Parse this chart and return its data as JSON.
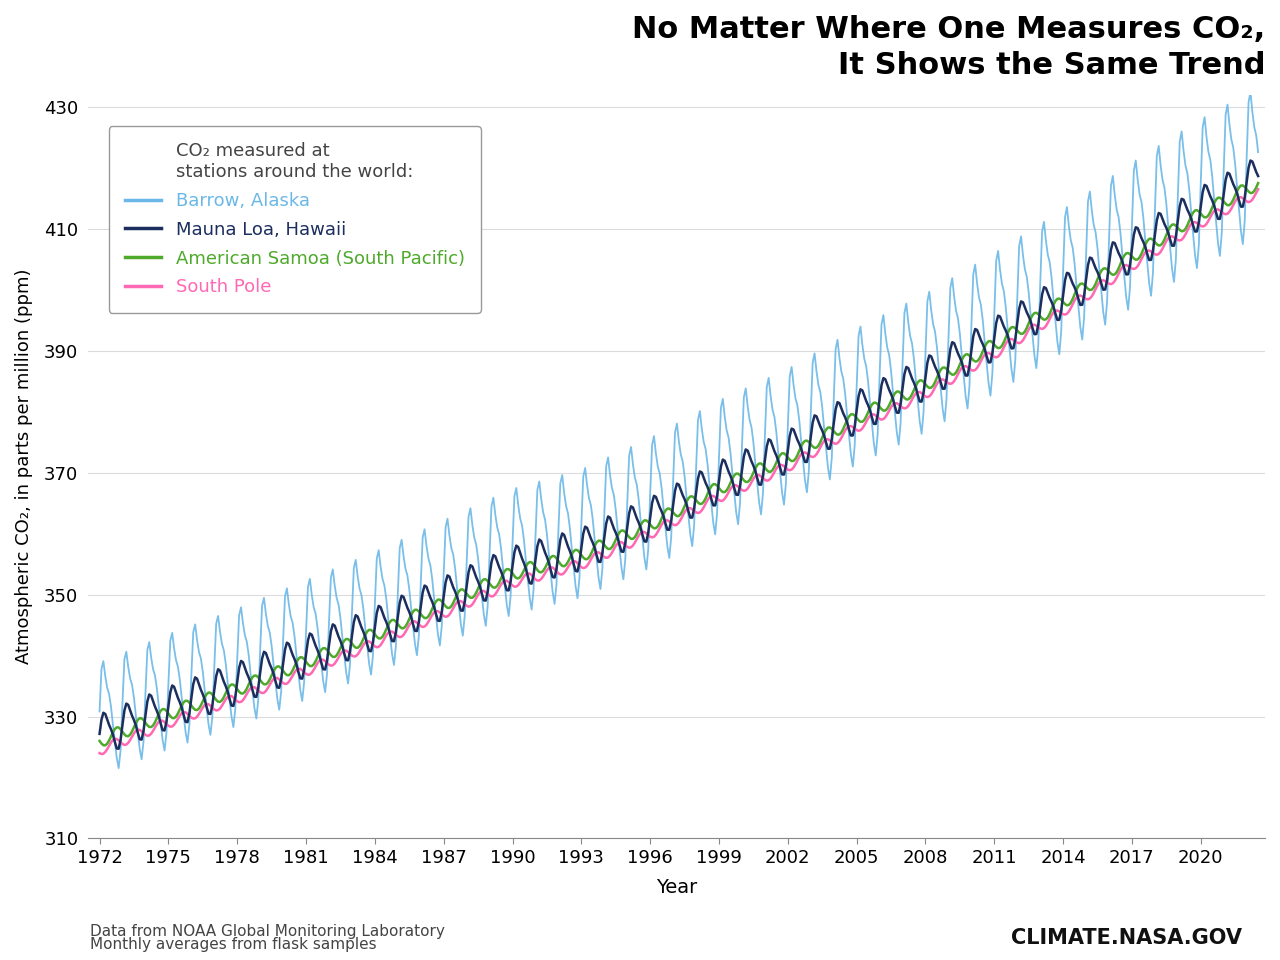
{
  "title_line1": "No Matter Where One Measures CO₂,",
  "title_line2": "It Shows the Same Trend",
  "ylabel": "Atmospheric CO₂, in parts per million (ppm)",
  "xlabel": "Year",
  "xlim": [
    1971.5,
    2022.8
  ],
  "ylim": [
    310,
    432
  ],
  "yticks": [
    310,
    330,
    350,
    370,
    390,
    410,
    430
  ],
  "xtick_start": 1972,
  "xtick_end": 2021,
  "xtick_step": 3,
  "stations": [
    "Barrow, Alaska",
    "Mauna Loa, Hawaii",
    "American Samoa (South Pacific)",
    "South Pole"
  ],
  "colors": [
    "#6BB8E8",
    "#1B2E5E",
    "#4EAA2A",
    "#FF69B4"
  ],
  "linewidths": [
    1.3,
    1.8,
    1.8,
    1.8
  ],
  "legend_header": "CO₂ measured at\nstations around the world:",
  "footnote1": "Data from NOAA Global Monitoring Laboratory",
  "footnote2": "Monthly averages from flask samples",
  "watermark": "CLIMATE.NASA.GOV",
  "background_color": "#ffffff",
  "grid_color": "#cccccc",
  "grid_alpha": 0.7,
  "title_fontsize": 22,
  "legend_fontsize": 13,
  "axis_fontsize": 13,
  "tick_fontsize": 13
}
